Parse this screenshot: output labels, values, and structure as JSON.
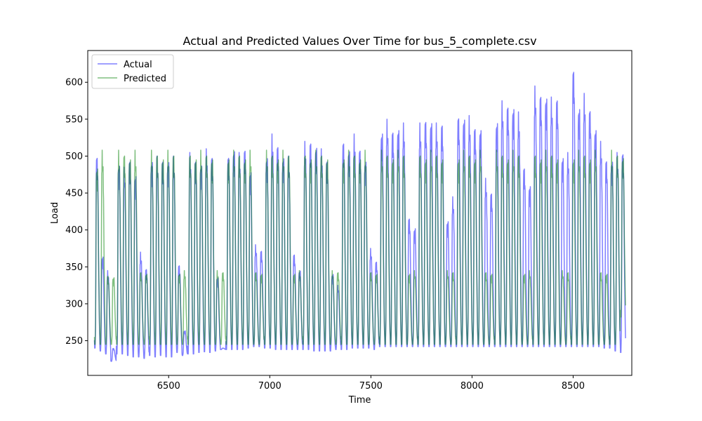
{
  "chart_data": {
    "type": "line",
    "title": "Actual and Predicted Values Over Time for bus_5_complete.csv",
    "xlabel": "Time",
    "ylabel": "Load",
    "xlim": [
      6100,
      8790
    ],
    "ylim": [
      203,
      643
    ],
    "xticks": [
      6500,
      7000,
      7500,
      8000,
      8500
    ],
    "yticks": [
      250,
      300,
      350,
      400,
      450,
      500,
      550,
      600
    ],
    "grid": false,
    "legend_position": "top-left",
    "series": [
      {
        "name": "Actual",
        "color": "#0000ff",
        "opacity": 0.5,
        "x_start": 6133,
        "x_end": 8760,
        "daily_peaks": [
          505,
          370,
          345,
          240,
          500,
          485,
          500,
          485,
          370,
          350,
          505,
          500,
          500,
          505,
          500,
          355,
          265,
          505,
          500,
          500,
          510,
          505,
          340,
          240,
          505,
          520,
          505,
          515,
          490,
          380,
          375,
          510,
          530,
          520,
          510,
          500,
          370,
          350,
          520,
          525,
          525,
          510,
          500,
          345,
          325,
          525,
          520,
          530,
          515,
          505,
          375,
          360,
          545,
          550,
          540,
          550,
          545,
          420,
          410,
          545,
          555,
          560,
          545,
          550,
          420,
          445,
          560,
          565,
          555,
          545,
          550,
          470,
          455,
          560,
          575,
          575,
          580,
          560,
          490,
          470,
          595,
          590,
          595,
          580,
          585,
          510,
          505,
          625,
          580,
          585,
          570,
          550,
          520,
          500,
          505,
          505,
          510
        ],
        "daily_troughs": [
          240,
          236,
          232,
          222,
          232,
          232,
          230,
          228,
          228,
          226,
          230,
          228,
          230,
          228,
          228,
          234,
          230,
          232,
          232,
          234,
          235,
          234,
          236,
          238,
          238,
          238,
          238,
          238,
          240,
          242,
          242,
          240,
          240,
          238,
          238,
          238,
          238,
          238,
          238,
          238,
          236,
          236,
          236,
          236,
          238,
          238,
          238,
          240,
          240,
          240,
          240,
          238,
          242,
          242,
          242,
          242,
          242,
          242,
          242,
          242,
          242,
          242,
          242,
          242,
          242,
          242,
          242,
          242,
          242,
          242,
          242,
          242,
          242,
          242,
          242,
          242,
          242,
          242,
          242,
          242,
          242,
          242,
          242,
          242,
          242,
          242,
          242,
          242,
          242,
          242,
          242,
          242,
          242,
          240,
          240,
          236,
          234
        ]
      },
      {
        "name": "Predicted",
        "color": "#008000",
        "opacity": 0.5,
        "x_start": 6133,
        "x_end": 8760,
        "daily_peaks": [
          495,
          508,
          340,
          340,
          508,
          508,
          508,
          508,
          345,
          345,
          508,
          508,
          508,
          508,
          508,
          345,
          345,
          508,
          508,
          508,
          508,
          508,
          345,
          345,
          508,
          508,
          508,
          508,
          508,
          345,
          345,
          508,
          508,
          508,
          508,
          508,
          345,
          345,
          508,
          508,
          508,
          508,
          508,
          345,
          345,
          508,
          508,
          508,
          508,
          508,
          345,
          345,
          508,
          508,
          508,
          508,
          508,
          345,
          345,
          508,
          508,
          508,
          508,
          508,
          345,
          345,
          508,
          508,
          508,
          508,
          508,
          345,
          345,
          508,
          508,
          508,
          508,
          508,
          345,
          345,
          508,
          508,
          508,
          508,
          508,
          345,
          345,
          508,
          508,
          508,
          508,
          508,
          345,
          345,
          508,
          508,
          508
        ],
        "daily_troughs": [
          245,
          245,
          245,
          245,
          245,
          245,
          245,
          245,
          245,
          245,
          245,
          245,
          245,
          245,
          245,
          245,
          245,
          245,
          245,
          245,
          245,
          245,
          245,
          245,
          245,
          245,
          245,
          245,
          245,
          245,
          245,
          245,
          245,
          245,
          245,
          245,
          245,
          245,
          245,
          245,
          245,
          245,
          245,
          245,
          245,
          245,
          245,
          245,
          245,
          245,
          245,
          245,
          245,
          245,
          245,
          245,
          245,
          245,
          245,
          245,
          245,
          245,
          245,
          245,
          245,
          245,
          245,
          245,
          245,
          245,
          245,
          245,
          245,
          245,
          245,
          245,
          245,
          245,
          245,
          245,
          245,
          245,
          245,
          245,
          245,
          245,
          245,
          245,
          245,
          245,
          245,
          245,
          245,
          245,
          245,
          245,
          282
        ]
      }
    ]
  }
}
